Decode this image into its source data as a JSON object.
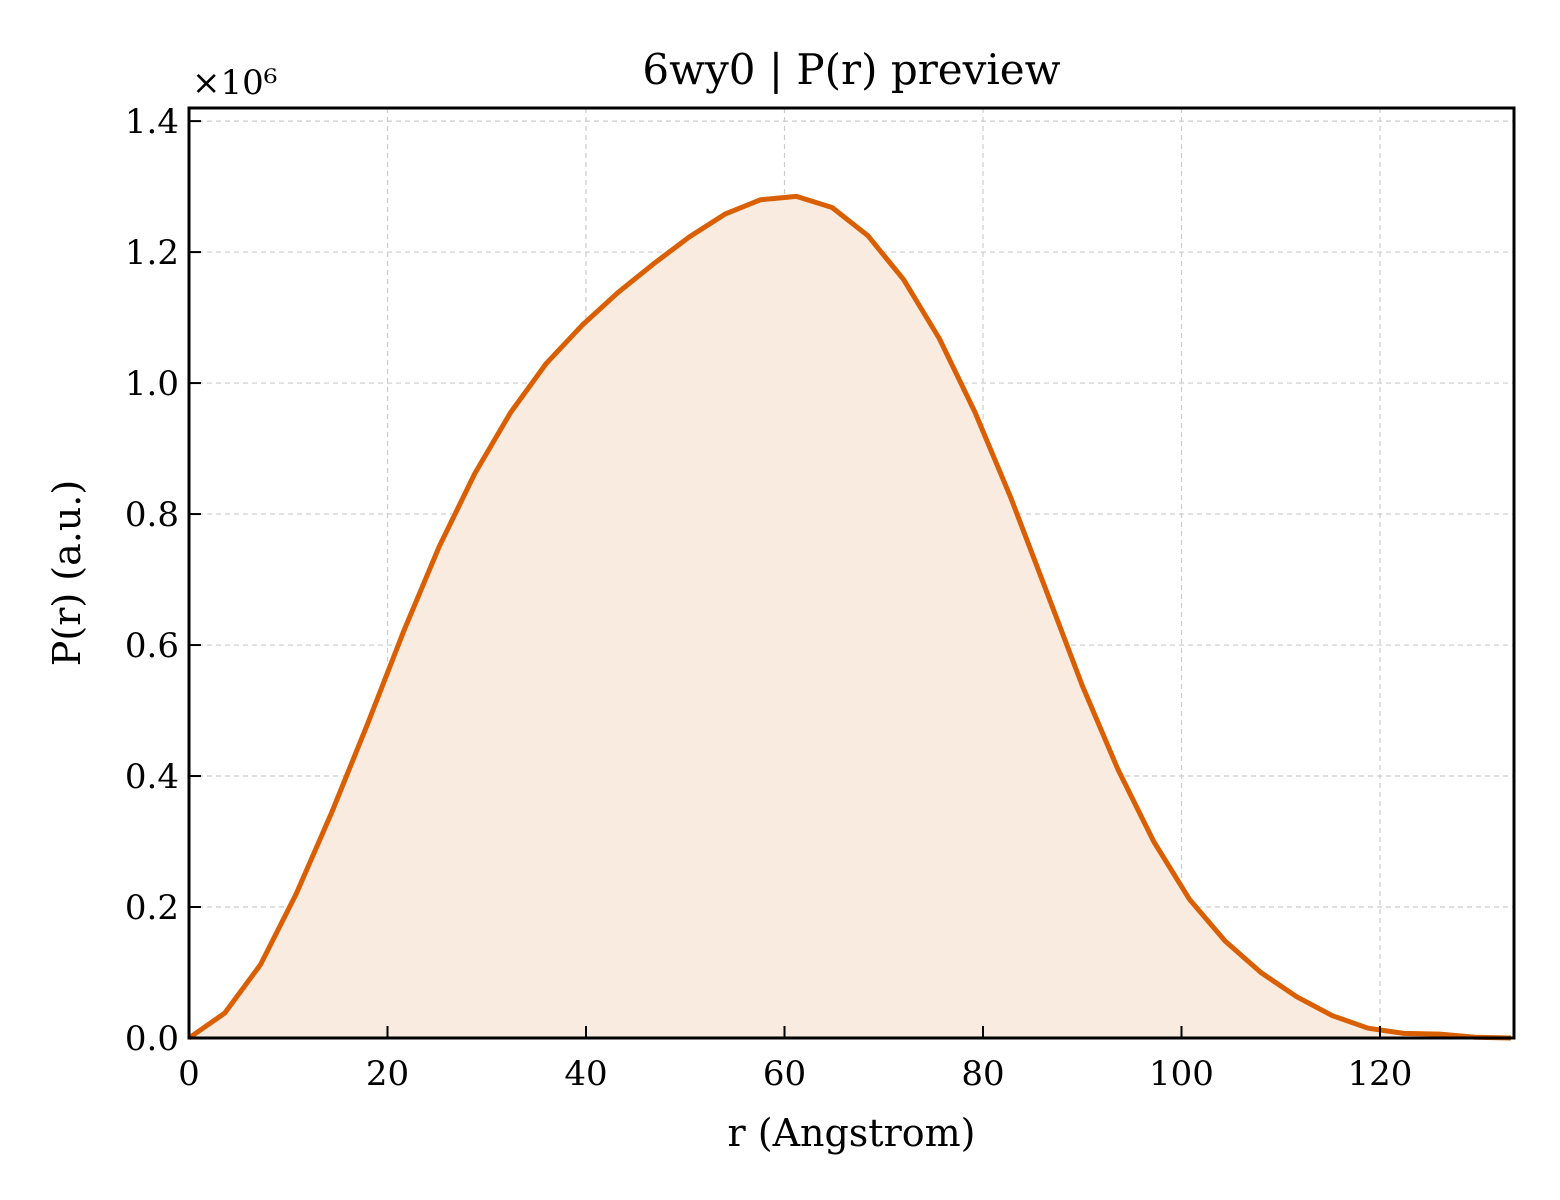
{
  "chart_data": {
    "type": "area",
    "title": "6wy0 | P(r) preview",
    "xlabel": "r (Angstrom)",
    "ylabel": "P(r) (a.u.)",
    "y_multiplier_label": "×10⁶",
    "y_multiplier": 1000000,
    "xlim": [
      0,
      133.5
    ],
    "ylim": [
      0,
      1.42
    ],
    "xticks": [
      0,
      20,
      40,
      60,
      80,
      100,
      120
    ],
    "yticks": [
      0.0,
      0.2,
      0.4,
      0.6,
      0.8,
      1.0,
      1.2,
      1.4
    ],
    "xtick_labels": [
      "0",
      "20",
      "40",
      "60",
      "80",
      "100",
      "120"
    ],
    "ytick_labels": [
      "0.0",
      "0.2",
      "0.4",
      "0.6",
      "0.8",
      "1.0",
      "1.2",
      "1.4"
    ],
    "grid": true,
    "line_color": "#d95f02",
    "fill_color": "#f9ebe0",
    "series": [
      {
        "x": [
          0,
          3.6,
          7.2,
          10.8,
          14.4,
          18.0,
          21.6,
          25.2,
          28.8,
          32.4,
          36.0,
          39.6,
          43.2,
          46.8,
          50.4,
          54.0,
          57.6,
          61.2,
          64.8,
          68.4,
          72.0,
          75.6,
          79.2,
          82.8,
          86.4,
          90.0,
          93.6,
          97.2,
          100.8,
          104.4,
          108.0,
          111.6,
          115.2,
          118.8,
          122.4,
          126.0,
          129.6,
          133.2
        ],
        "values": [
          0.0,
          0.038,
          0.112,
          0.22,
          0.345,
          0.48,
          0.62,
          0.75,
          0.862,
          0.955,
          1.03,
          1.088,
          1.138,
          1.182,
          1.223,
          1.258,
          1.28,
          1.285,
          1.268,
          1.225,
          1.158,
          1.068,
          0.955,
          0.825,
          0.682,
          0.538,
          0.41,
          0.3,
          0.212,
          0.148,
          0.1,
          0.063,
          0.034,
          0.015,
          0.007,
          0.006,
          0.001,
          0.0
        ]
      }
    ]
  }
}
